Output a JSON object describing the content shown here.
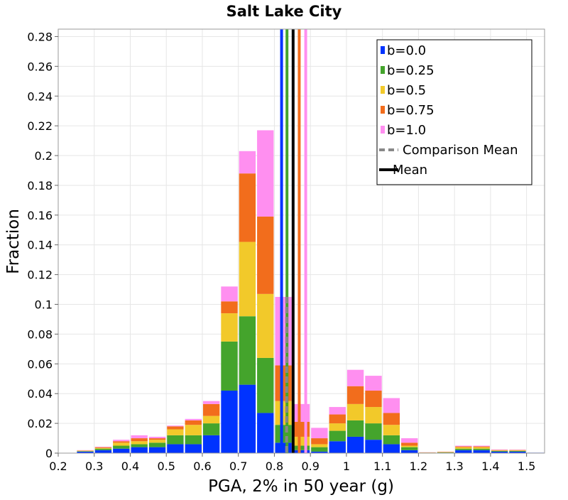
{
  "chart_data": {
    "type": "bar",
    "title": "Salt Lake City",
    "xlabel": "PGA, 2% in 50 year (g)",
    "ylabel": "Fraction",
    "xlim": [
      0.2,
      1.55
    ],
    "ylim": [
      0,
      0.285
    ],
    "grid": true,
    "stacked": true,
    "legend_position": "top-right",
    "xticks": [
      "0.2",
      "0.3",
      "0.4",
      "0.5",
      "0.6",
      "0.7",
      "0.8",
      "0.9",
      "1",
      "1.1",
      "1.2",
      "1.3",
      "1.4",
      "1.5"
    ],
    "xtick_values": [
      0.2,
      0.3,
      0.4,
      0.5,
      0.6,
      0.7,
      0.8,
      0.9,
      1.0,
      1.1,
      1.2,
      1.3,
      1.4,
      1.5
    ],
    "yticks": [
      "0",
      "0.02",
      "0.04",
      "0.06",
      "0.08",
      "0.1",
      "0.12",
      "0.14",
      "0.16",
      "0.18",
      "0.2",
      "0.22",
      "0.24",
      "0.26",
      "0.28"
    ],
    "ytick_values": [
      0,
      0.02,
      0.04,
      0.06,
      0.08,
      0.1,
      0.12,
      0.14,
      0.16,
      0.18,
      0.2,
      0.22,
      0.24,
      0.26,
      0.28
    ],
    "bin_width": 0.05,
    "x": [
      0.275,
      0.325,
      0.375,
      0.425,
      0.475,
      0.525,
      0.575,
      0.625,
      0.675,
      0.725,
      0.775,
      0.825,
      0.875,
      0.925,
      0.975,
      1.025,
      1.075,
      1.125,
      1.175,
      1.225,
      1.275,
      1.325,
      1.375,
      1.425,
      1.475,
      1.525
    ],
    "series": [
      {
        "name": "b=0.0",
        "color": "#0033ff",
        "values": [
          0.001,
          0.002,
          0.003,
          0.004,
          0.004,
          0.006,
          0.006,
          0.012,
          0.042,
          0.046,
          0.027,
          0.007,
          0.002,
          0.001,
          0.008,
          0.011,
          0.009,
          0.006,
          0.002,
          0.0002,
          0.0003,
          0.002,
          0.002,
          0.001,
          0.001,
          0.0003
        ]
      },
      {
        "name": "b=0.25",
        "color": "#44a42c",
        "values": [
          0.0003,
          0.001,
          0.002,
          0.002,
          0.003,
          0.006,
          0.006,
          0.008,
          0.033,
          0.046,
          0.037,
          0.012,
          0.003,
          0.003,
          0.007,
          0.011,
          0.011,
          0.006,
          0.002,
          0.0001,
          0.0002,
          0.001,
          0.001,
          0.0005,
          0.0005,
          0
        ]
      },
      {
        "name": "b=0.5",
        "color": "#f2c92a",
        "values": [
          0.0003,
          0.0005,
          0.002,
          0.002,
          0.002,
          0.004,
          0.007,
          0.005,
          0.019,
          0.05,
          0.043,
          0.016,
          0.006,
          0.002,
          0.005,
          0.011,
          0.011,
          0.007,
          0.001,
          0.0001,
          0.0002,
          0.001,
          0.001,
          0.0003,
          0.0003,
          0
        ]
      },
      {
        "name": "b=0.75",
        "color": "#f26d1c",
        "values": [
          0.0002,
          0.0005,
          0.001,
          0.002,
          0.001,
          0.002,
          0.003,
          0.008,
          0.008,
          0.046,
          0.052,
          0.024,
          0.01,
          0.004,
          0.006,
          0.012,
          0.011,
          0.008,
          0.002,
          0.0001,
          0.0002,
          0.0005,
          0.0005,
          0.0003,
          0.0003,
          0
        ]
      },
      {
        "name": "b=1.0",
        "color": "#ff8ff0",
        "values": [
          0.0002,
          0.0003,
          0.001,
          0.002,
          0.001,
          0.0005,
          0.001,
          0.002,
          0.01,
          0.015,
          0.058,
          0.046,
          0.012,
          0.007,
          0.005,
          0.011,
          0.01,
          0.01,
          0.003,
          0.0001,
          0.0001,
          0.0005,
          0.0005,
          0.0003,
          0.0002,
          0
        ]
      }
    ],
    "reference_lines": [
      {
        "name": "Comparison Mean",
        "x": 0.834,
        "color": "#888888",
        "style": "dashed",
        "ymax": 0.105
      },
      {
        "name": "Mean",
        "x": 0.852,
        "color": "#000000",
        "style": "solid"
      }
    ],
    "series_mean_lines": [
      {
        "series": "b=0.0",
        "x": 0.82,
        "color": "#0033ff"
      },
      {
        "series": "b=0.25",
        "x": 0.835,
        "color": "#44a42c"
      },
      {
        "series": "b=0.75",
        "x": 0.869,
        "color": "#f26d1c"
      },
      {
        "series": "b=1.0",
        "x": 0.887,
        "color": "#ff8ff0"
      }
    ]
  }
}
